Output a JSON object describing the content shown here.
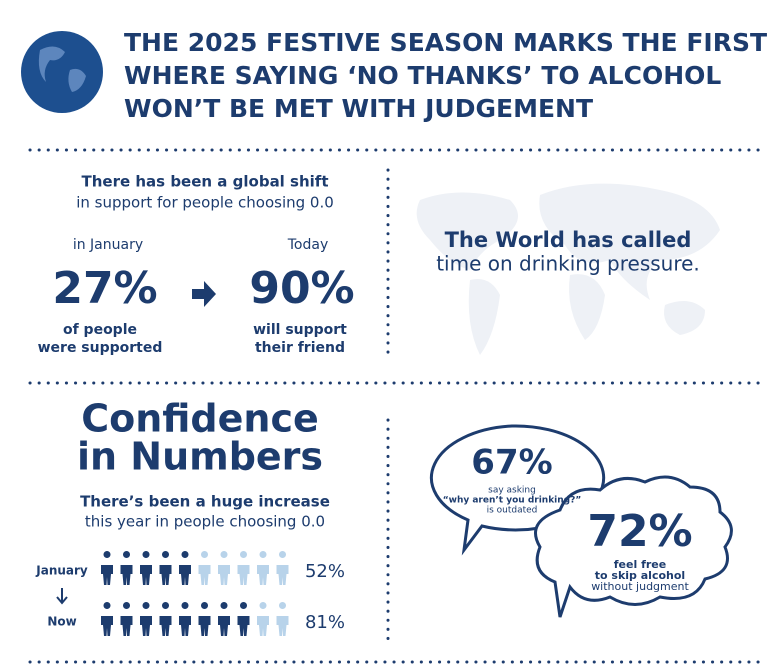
{
  "header": {
    "title_lines": [
      "THE 2025 FESTIVE SEASON MARKS THE FIRST",
      "WHERE SAYING ‘NO THANKS’ TO ALCOHOL",
      "WON’T BE MET WITH JUDGEMENT"
    ]
  },
  "shift": {
    "heading_lines": [
      "There has been a global shift",
      "in support for people choosing 0.0"
    ],
    "before": {
      "label": "in January",
      "value": "27%",
      "caption_lines": [
        "of people",
        "were supported"
      ]
    },
    "after": {
      "label": "Today",
      "value": "90%",
      "caption_lines": [
        "will support",
        "their friend"
      ]
    }
  },
  "world": {
    "lines": [
      "The World has called",
      "time on drinking pressure."
    ]
  },
  "confidence": {
    "title_lines": [
      "Confidence",
      "in Numbers"
    ],
    "subtitle_lines": [
      "There’s been a huge increase",
      "this year in people choosing 0.0"
    ],
    "rows": [
      {
        "label": "January",
        "value": "52%"
      },
      {
        "label": "Now",
        "value": "81%"
      }
    ]
  },
  "bubbles": [
    {
      "value": "67%",
      "lines": [
        "say asking",
        "“why aren’t you drinking?”",
        "is outdated"
      ]
    },
    {
      "value": "72%",
      "lines": [
        "feel free",
        "to skip alcohol",
        "without judgment"
      ]
    }
  ]
}
